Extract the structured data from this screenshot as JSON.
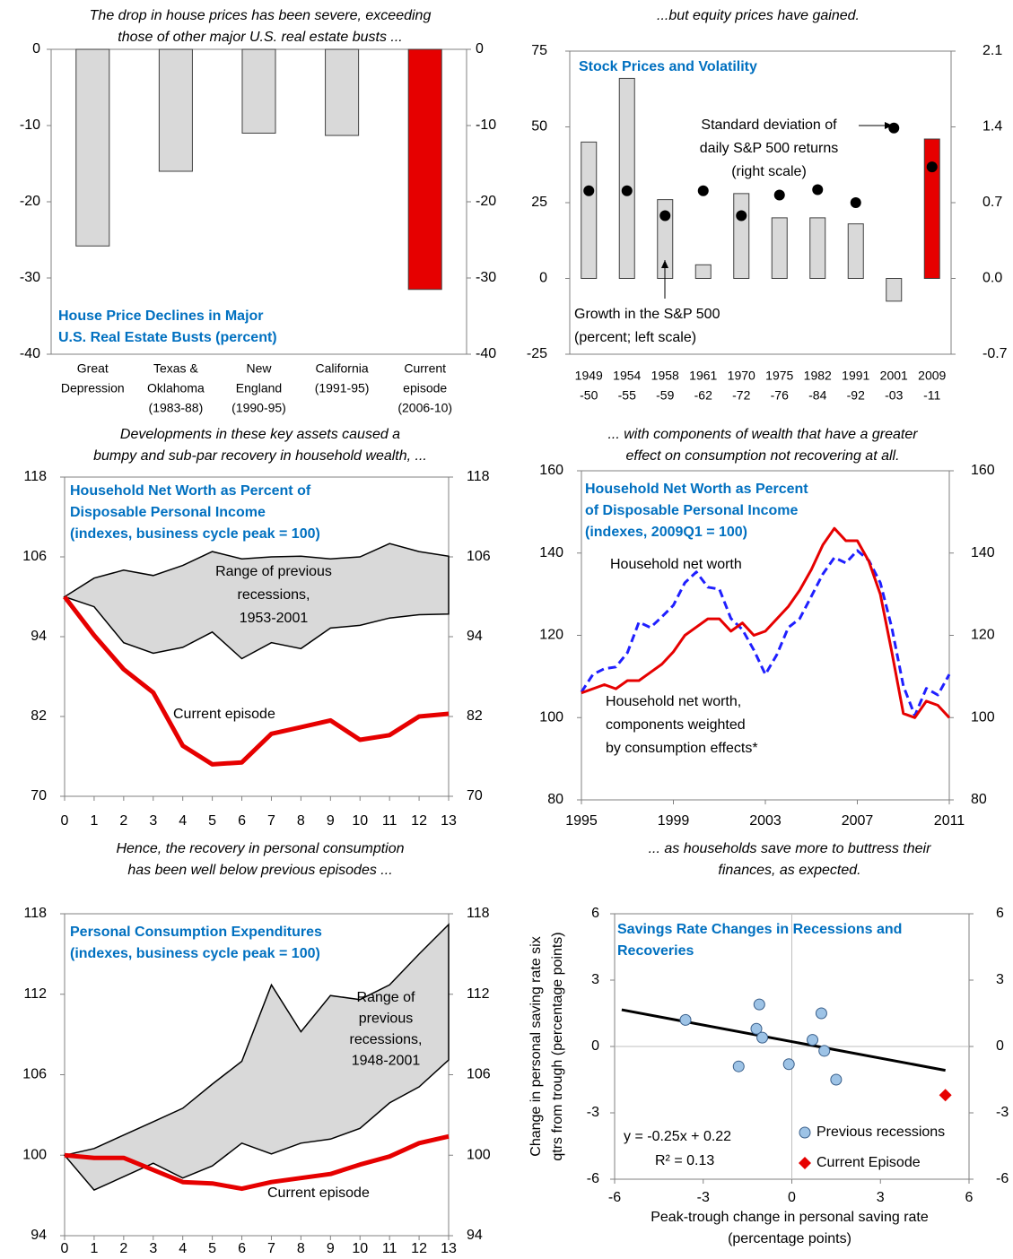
{
  "chart_data": [
    {
      "type": "bar",
      "caption": [
        "The drop in house prices has been severe, exceeding",
        "those of other major U.S. real estate busts ..."
      ],
      "title": [
        "House Price Declines in Major",
        "U.S. Real Estate Busts (percent)"
      ],
      "categories": [
        [
          "Great",
          "Depression"
        ],
        [
          "Texas &",
          "Oklahoma",
          "(1983-88)"
        ],
        [
          "New",
          "England",
          "(1990-95)"
        ],
        [
          "California",
          "(1991-95)"
        ],
        [
          "Current",
          "episode",
          "(2006-10)"
        ]
      ],
      "values": [
        -25.8,
        -16,
        -11,
        -11.3,
        -31.5
      ],
      "colors": [
        "#d9d9d9",
        "#d9d9d9",
        "#d9d9d9",
        "#d9d9d9",
        "#e60000"
      ],
      "ylim": [
        -40,
        0
      ],
      "yticks": [
        0,
        -10,
        -20,
        -30,
        -40
      ],
      "y2lim": [
        -40,
        0
      ],
      "y2ticks": [
        0,
        -10,
        -20,
        -30,
        -40
      ]
    },
    {
      "type": "bar",
      "caption": [
        "...but equity prices have gained."
      ],
      "title": [
        "Stock Prices and Volatility"
      ],
      "categories": [
        [
          "1949",
          "-50"
        ],
        [
          "1954",
          "-55"
        ],
        [
          "1958",
          "-59"
        ],
        [
          "1961",
          "-62"
        ],
        [
          "1970",
          "-72"
        ],
        [
          "1975",
          "-76"
        ],
        [
          "1982",
          "-84"
        ],
        [
          "1991",
          "-92"
        ],
        [
          "2001",
          "-03"
        ],
        [
          "2009",
          "-11"
        ]
      ],
      "series": [
        {
          "type": "bar",
          "name": [
            "Growth in the S&P 500",
            "(percent; left scale)"
          ],
          "values": [
            45,
            66,
            26,
            4.5,
            28,
            20,
            20,
            18,
            -7.5,
            46
          ],
          "colors": [
            "#d9d9d9",
            "#d9d9d9",
            "#d9d9d9",
            "#d9d9d9",
            "#d9d9d9",
            "#d9d9d9",
            "#d9d9d9",
            "#d9d9d9",
            "#d9d9d9",
            "#e60000"
          ]
        },
        {
          "type": "scatter",
          "axis": "y2",
          "name": [
            "Standard deviation of",
            "daily S&P 500 returns",
            "(right scale)"
          ],
          "values": [
            0.81,
            0.81,
            0.58,
            0.81,
            0.58,
            0.77,
            0.82,
            0.7,
            1.39,
            1.03
          ],
          "color": "#000000"
        }
      ],
      "ylim": [
        -25,
        75
      ],
      "yticks": [
        75,
        50,
        25,
        0,
        -25
      ],
      "y2lim": [
        -0.7,
        2.1
      ],
      "y2ticks": [
        2.1,
        1.4,
        0.7,
        {
          "value": 0,
          "label": "0.0"
        },
        -0.7
      ]
    },
    {
      "type": "line",
      "caption": [
        "Developments in these key assets caused a",
        "bumpy and sub-par recovery in household wealth, ..."
      ],
      "title": [
        "Household Net Worth as Percent of",
        "Disposable Personal Income",
        "(indexes, business cycle peak = 100)"
      ],
      "x": [
        0,
        1,
        2,
        3,
        4,
        5,
        6,
        7,
        8,
        9,
        10,
        11,
        12,
        13
      ],
      "range": {
        "label": [
          "Range of previous",
          "recessions,",
          "1953-2001"
        ],
        "color": "#d9d9d9",
        "upper": [
          100,
          102.8,
          104.0,
          103.2,
          104.7,
          106.8,
          105.7,
          106.0,
          106.1,
          105.7,
          106.0,
          108.0,
          106.8,
          106.1
        ],
        "lower": [
          100,
          98.5,
          93.1,
          91.5,
          92.4,
          94.7,
          90.7,
          93.1,
          92.2,
          95.3,
          95.7,
          96.8,
          97.3,
          97.4
        ]
      },
      "series": [
        {
          "name": [
            "Current episode"
          ],
          "color": "#e60000",
          "values": [
            100,
            94.2,
            89.1,
            85.6,
            77.6,
            74.8,
            75.1,
            79.4,
            80.4,
            81.4,
            78.5,
            79.2,
            82.0,
            82.4
          ]
        }
      ],
      "xlim": [
        0,
        13
      ],
      "xticks": [
        0,
        1,
        2,
        3,
        4,
        5,
        6,
        7,
        8,
        9,
        10,
        11,
        12,
        13
      ],
      "ylim": [
        70,
        118
      ],
      "yticks": [
        118,
        106,
        94,
        82,
        70
      ],
      "y2lim": [
        70,
        118
      ],
      "y2ticks": [
        118,
        106,
        94,
        82,
        70
      ]
    },
    {
      "type": "line",
      "caption": [
        "... with components of wealth that have a greater",
        "effect on consumption not recovering at all."
      ],
      "title": [
        "Household Net Worth as Percent",
        "of Disposable Personal Income",
        "(indexes, 2009Q1 = 100)"
      ],
      "x": [
        1995,
        1995.5,
        1996,
        1996.5,
        1997,
        1997.5,
        1998,
        1998.5,
        1999,
        1999.5,
        2000,
        2000.5,
        2001,
        2001.5,
        2002,
        2002.5,
        2003,
        2003.5,
        2004,
        2004.5,
        2005,
        2005.5,
        2006,
        2006.5,
        2007,
        2007.5,
        2008,
        2008.5,
        2009,
        2009.5,
        2010,
        2010.5,
        2011
      ],
      "series": [
        {
          "name": [
            "Household net worth"
          ],
          "color": "#1f1fff",
          "dashed": true,
          "values": [
            106.2,
            110.5,
            111.9,
            112.3,
            115.8,
            123.2,
            121.9,
            124.5,
            127.3,
            132.8,
            135.4,
            131.7,
            131.2,
            124.1,
            121.4,
            116.4,
            110.5,
            115.3,
            121.9,
            124.1,
            129.5,
            134.9,
            138.9,
            137.6,
            140.6,
            138.2,
            132.8,
            121.9,
            107.7,
            100.5,
            107.1,
            105.5,
            110.5
          ]
        },
        {
          "name": [
            "Household net worth,",
            "components weighted",
            "by consumption effects*"
          ],
          "color": "#e60000",
          "values": [
            106,
            107,
            108,
            107,
            109,
            109,
            111,
            113,
            116,
            120,
            122,
            124,
            124,
            121,
            123,
            120,
            121,
            124,
            127,
            131,
            136,
            142,
            146,
            143,
            143,
            138,
            130,
            116,
            101,
            100,
            104,
            103,
            100
          ]
        }
      ],
      "xlim": [
        1995,
        2011
      ],
      "xticks": [
        1995,
        1999,
        2003,
        2007,
        2011
      ],
      "ylim": [
        80,
        160
      ],
      "yticks": [
        160,
        140,
        120,
        100,
        80
      ],
      "y2lim": [
        80,
        160
      ],
      "y2ticks": [
        160,
        140,
        120,
        100,
        80
      ]
    },
    {
      "type": "line",
      "caption": [
        "Hence, the recovery in personal consumption",
        "has been well below previous episodes ..."
      ],
      "title": [
        "Personal Consumption Expenditures",
        "(indexes, business cycle peak = 100)"
      ],
      "x": [
        0,
        1,
        2,
        3,
        4,
        5,
        6,
        7,
        8,
        9,
        10,
        11,
        12,
        13
      ],
      "range": {
        "label": [
          "Range of",
          "previous",
          "recessions,",
          "1948-2001"
        ],
        "color": "#d9d9d9",
        "upper": [
          100,
          100.5,
          101.5,
          102.5,
          103.5,
          105.3,
          107.0,
          112.7,
          109.2,
          111.9,
          111.6,
          112.7,
          115.0,
          117.2
        ],
        "lower": [
          100,
          97.4,
          98.4,
          99.4,
          98.3,
          99.2,
          100.9,
          100.1,
          100.9,
          101.2,
          102.0,
          103.9,
          105.1,
          107.1
        ]
      },
      "series": [
        {
          "name": [
            "Current episode"
          ],
          "color": "#e60000",
          "values": [
            100,
            99.8,
            99.8,
            98.9,
            98.0,
            97.9,
            97.5,
            98.0,
            98.3,
            98.6,
            99.3,
            99.9,
            100.9,
            101.4
          ]
        }
      ],
      "xlim": [
        0,
        13
      ],
      "xticks": [
        0,
        1,
        2,
        3,
        4,
        5,
        6,
        7,
        8,
        9,
        10,
        11,
        12,
        13
      ],
      "ylim": [
        94,
        118
      ],
      "yticks": [
        118,
        112,
        106,
        100,
        94
      ],
      "y2lim": [
        94,
        118
      ],
      "y2ticks": [
        118,
        112,
        106,
        100,
        94
      ]
    },
    {
      "type": "scatter",
      "caption": [
        "... as households save more to buttress their",
        "finances, as expected."
      ],
      "title": [
        "Savings Rate Changes in Recessions and",
        "Recoveries"
      ],
      "xlabel": [
        "Peak-trough change in personal saving rate",
        "(percentage points)"
      ],
      "ylabel": [
        "Change in personal saving rate six",
        "qtrs from trough (percentage points)"
      ],
      "series": [
        {
          "name": "Previous recessions",
          "color": "#9dc3e6",
          "marker": "circle",
          "x": [
            -3.6,
            -1.1,
            -1.2,
            -1.0,
            -1.8,
            -0.1,
            1.0,
            0.7,
            1.1,
            1.5
          ],
          "values": [
            1.2,
            1.9,
            0.8,
            0.4,
            -0.9,
            -0.8,
            1.5,
            0.3,
            -0.2,
            -1.5
          ]
        },
        {
          "name": "Current Episode",
          "color": "#e60000",
          "marker": "diamond",
          "x": [
            5.2
          ],
          "values": [
            -2.2
          ]
        }
      ],
      "trend": {
        "slope": -0.25,
        "intercept": 0.22,
        "equation": "y = -0.25x + 0.22",
        "r2": "R² = 0.13"
      },
      "xlim": [
        -6,
        6
      ],
      "xticks": [
        -6,
        -3,
        0,
        3,
        6
      ],
      "ylim": [
        -6,
        6
      ],
      "yticks": [
        6,
        3,
        0,
        -3,
        -6
      ],
      "y2lim": [
        -6,
        6
      ],
      "y2ticks": [
        6,
        3,
        0,
        -3,
        -6
      ]
    }
  ]
}
